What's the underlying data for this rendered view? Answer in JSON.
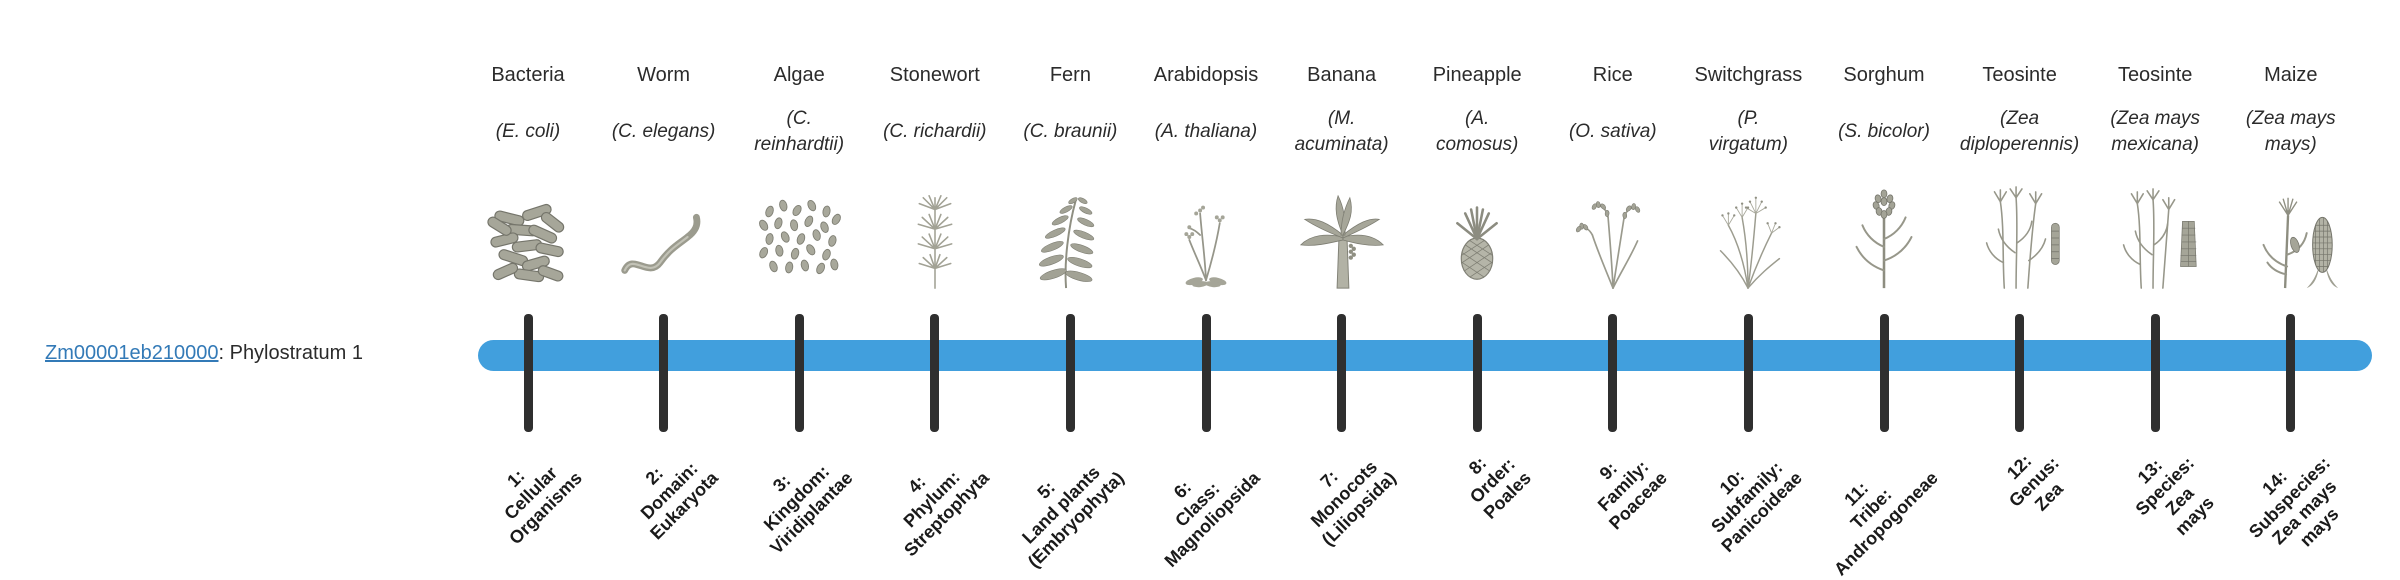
{
  "gene": {
    "id": "Zm00001eb210000",
    "suffix": ": Phylostratum 1"
  },
  "colors": {
    "bar": "#419fdd",
    "tick": "#2f2f2f",
    "link": "#337ab7"
  },
  "columns": [
    {
      "name": "Bacteria",
      "sci": "(E. coli)",
      "icon": "bacteria-icon",
      "taxon": "1:\nCellular\nOrganisms"
    },
    {
      "name": "Worm",
      "sci": "(C. elegans)",
      "icon": "worm-icon",
      "taxon": "2:\nDomain:\nEukaryota"
    },
    {
      "name": "Algae",
      "sci": "(C.\nreinhardtii)",
      "icon": "algae-icon",
      "taxon": "3:\nKingdom:\nViridiplantae"
    },
    {
      "name": "Stonewort",
      "sci": "(C. richardii)",
      "icon": "stonewort-icon",
      "taxon": "4:\nPhylum:\nStreptophyta"
    },
    {
      "name": "Fern",
      "sci": "(C. braunii)",
      "icon": "fern-icon",
      "taxon": "5:\nLand plants\n(Embryophyta)"
    },
    {
      "name": "Arabidopsis",
      "sci": "(A. thaliana)",
      "icon": "arabidopsis-icon",
      "taxon": "6:\nClass:\nMagnoliopsida"
    },
    {
      "name": "Banana",
      "sci": "(M.\nacuminata)",
      "icon": "banana-icon",
      "taxon": "7:\nMonocots\n(Liliopsida)"
    },
    {
      "name": "Pineapple",
      "sci": "(A.\ncomosus)",
      "icon": "pineapple-icon",
      "taxon": "8:\nOrder:\nPoales"
    },
    {
      "name": "Rice",
      "sci": "(O. sativa)",
      "icon": "rice-icon",
      "taxon": "9:\nFamily:\nPoaceae"
    },
    {
      "name": "Switchgrass",
      "sci": "(P.\nvirgatum)",
      "icon": "switchgrass-icon",
      "taxon": "10:\nSubfamily:\nPanicoideae"
    },
    {
      "name": "Sorghum",
      "sci": "(S. bicolor)",
      "icon": "sorghum-icon",
      "taxon": "11:\nTribe:\nAndropogoneae"
    },
    {
      "name": "Teosinte",
      "sci": "(Zea\ndiploperennis)",
      "icon": "teosinte-diploperennis-icon",
      "taxon": "12:\nGenus:\nZea"
    },
    {
      "name": "Teosinte",
      "sci": "(Zea mays\nmexicana)",
      "icon": "teosinte-mexicana-icon",
      "taxon": "13:\nSpecies:\nZea\nmays"
    },
    {
      "name": "Maize",
      "sci": "(Zea mays\nmays)",
      "icon": "maize-icon",
      "taxon": "14:\nSubspecies:\nZea mays\nmays"
    }
  ]
}
